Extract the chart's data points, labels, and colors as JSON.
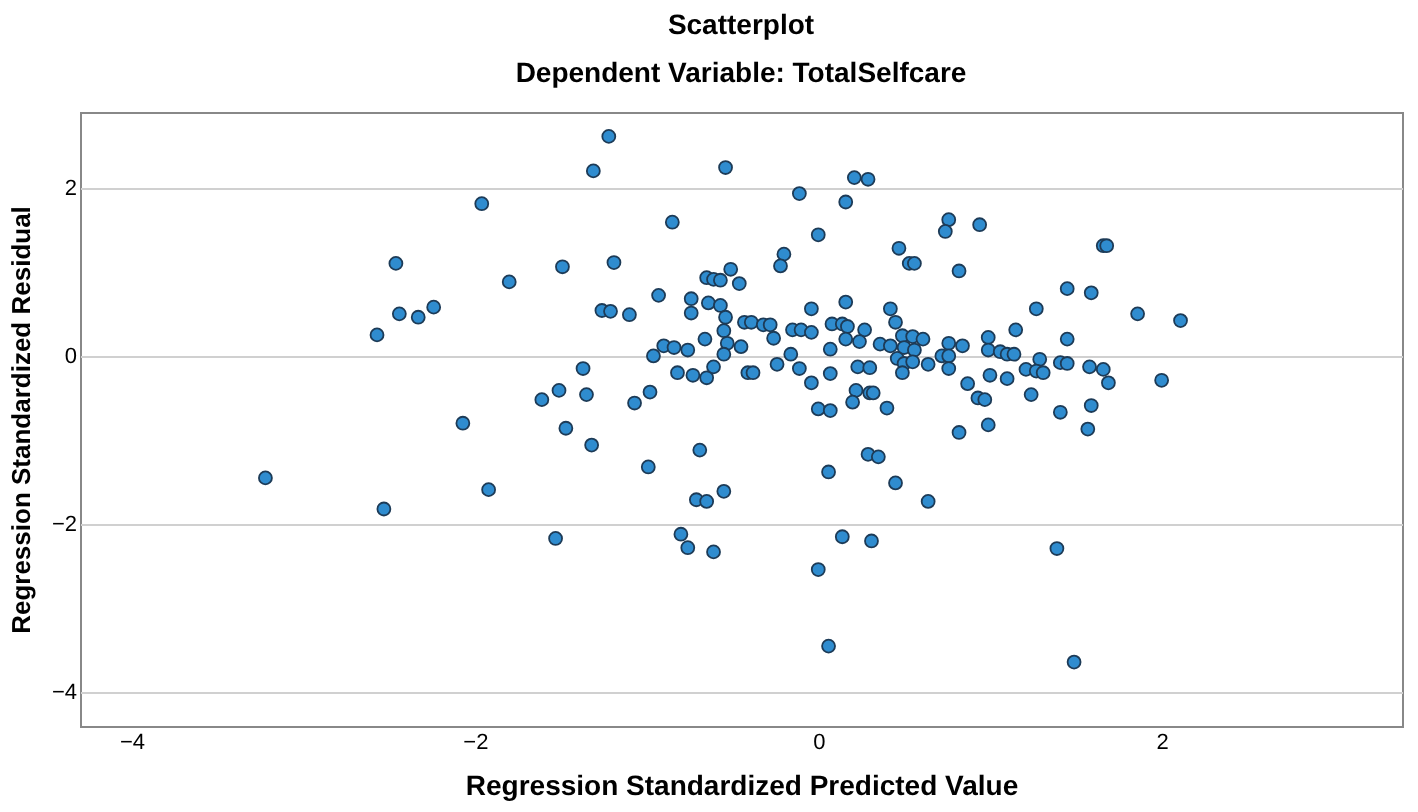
{
  "chart_data": {
    "type": "scatter",
    "title": "Scatterplot",
    "subtitle": "Dependent Variable: TotalSelfcare",
    "xlabel": "Regression Standardized Predicted Value",
    "ylabel": "Regression Standardized Residual",
    "xlim": [
      -4.3,
      3.4
    ],
    "ylim": [
      -4.4,
      2.9
    ],
    "xticks": [
      -4,
      -2,
      0,
      2
    ],
    "yticks": [
      -4,
      -2,
      0,
      2
    ],
    "grid": "y",
    "marker": "circle",
    "x": [
      -1.22,
      -1.31,
      -0.54,
      0.21,
      0.29,
      -1.96,
      -2.46,
      -1.8,
      -2.44,
      -2.33,
      -2.24,
      -2.57,
      -1.61,
      -2.07,
      -3.22,
      -1.92,
      -2.53,
      -1.53,
      -0.85,
      -0.11,
      0.16,
      0.0,
      -1.49,
      -1.19,
      -0.2,
      -0.22,
      -0.51,
      -0.46,
      -0.65,
      -0.61,
      -0.57,
      -0.93,
      -1.26,
      -1.21,
      -1.1,
      -0.74,
      -0.74,
      -0.64,
      -0.57,
      -0.54,
      -0.55,
      -0.66,
      -0.53,
      -0.55,
      -0.43,
      -0.39,
      -0.32,
      -0.28,
      -0.26,
      -0.45,
      -0.15,
      -0.1,
      -0.04,
      -0.04,
      0.07,
      0.08,
      0.14,
      0.17,
      0.16,
      0.16,
      -0.96,
      -0.9,
      -0.84,
      -0.76,
      -0.82,
      -0.73,
      -0.65,
      -0.61,
      -0.41,
      -0.38,
      -0.24,
      -0.16,
      -0.11,
      -0.04,
      0.07,
      0.0,
      0.07,
      -1.37,
      -1.51,
      -1.35,
      -1.47,
      -1.32,
      -1.07,
      -0.98,
      -0.99,
      -0.69,
      -0.71,
      -0.65,
      -0.55,
      -0.8,
      -0.76,
      -0.61,
      0.06,
      0.14,
      0.0,
      0.06,
      0.76,
      0.74,
      0.94,
      0.47,
      0.53,
      0.56,
      0.82,
      1.66,
      1.68,
      1.45,
      1.59,
      1.86,
      2.11,
      1.27,
      0.42,
      0.45,
      0.27,
      0.24,
      0.49,
      0.55,
      0.61,
      0.36,
      0.42,
      0.5,
      0.56,
      0.46,
      0.5,
      0.55,
      0.49,
      0.64,
      0.76,
      0.84,
      0.72,
      0.76,
      0.76,
      0.99,
      0.99,
      1.06,
      1.1,
      1.14,
      1.15,
      1.45,
      1.29,
      1.21,
      1.27,
      1.31,
      1.41,
      1.45,
      1.58,
      1.66,
      1.69,
      2.0,
      1.0,
      1.1,
      0.87,
      1.24,
      0.93,
      0.97,
      1.41,
      1.59,
      1.57,
      0.99,
      0.82,
      0.3,
      0.32,
      0.22,
      0.2,
      0.4,
      0.23,
      0.3,
      0.29,
      0.35,
      0.45,
      0.64,
      0.31,
      1.39,
      1.49
    ],
    "series": [
      {
        "color": "#2f8ccf",
        "values": [
          2.61,
          2.2,
          2.24,
          2.12,
          2.1,
          1.81,
          1.1,
          0.88,
          0.5,
          0.46,
          0.58,
          0.25,
          -0.52,
          -0.8,
          -1.45,
          -1.59,
          -1.82,
          -2.17,
          1.59,
          1.93,
          1.83,
          1.44,
          1.06,
          1.11,
          1.21,
          1.07,
          1.03,
          0.86,
          0.93,
          0.91,
          0.9,
          0.72,
          0.54,
          0.53,
          0.49,
          0.68,
          0.51,
          0.63,
          0.6,
          0.46,
          0.3,
          0.2,
          0.15,
          0.02,
          0.4,
          0.4,
          0.37,
          0.37,
          0.21,
          0.11,
          0.31,
          0.31,
          0.56,
          0.28,
          0.08,
          0.38,
          0.38,
          0.35,
          0.64,
          0.2,
          0.0,
          0.12,
          0.1,
          0.07,
          -0.2,
          -0.23,
          -0.26,
          -0.13,
          -0.2,
          -0.2,
          -0.1,
          0.02,
          -0.15,
          -0.32,
          -0.21,
          -0.63,
          -0.65,
          -0.15,
          -0.41,
          -0.46,
          -0.86,
          -1.06,
          -0.56,
          -0.43,
          -1.32,
          -1.12,
          -1.71,
          -1.73,
          -1.61,
          -2.12,
          -2.28,
          -2.33,
          -1.38,
          -2.15,
          -2.54,
          -3.45,
          1.62,
          1.48,
          1.56,
          1.28,
          1.1,
          1.1,
          1.01,
          1.31,
          1.31,
          0.8,
          0.75,
          0.5,
          0.42,
          0.56,
          0.56,
          0.4,
          0.31,
          0.17,
          0.24,
          0.23,
          0.2,
          0.14,
          0.12,
          0.1,
          0.07,
          -0.03,
          -0.09,
          -0.07,
          -0.2,
          -0.1,
          0.15,
          0.12,
          0.0,
          0.0,
          -0.15,
          0.22,
          0.07,
          0.05,
          0.02,
          0.02,
          0.31,
          0.2,
          -0.04,
          -0.16,
          -0.18,
          -0.2,
          -0.08,
          -0.09,
          -0.13,
          -0.16,
          -0.32,
          -0.29,
          -0.23,
          -0.27,
          -0.33,
          -0.46,
          -0.5,
          -0.52,
          -0.67,
          -0.59,
          -0.87,
          -0.82,
          -0.91,
          -0.44,
          -0.44,
          -0.41,
          -0.55,
          -0.62,
          -0.13,
          -0.14,
          -1.17,
          -1.2,
          -1.51,
          -1.73,
          -2.2,
          -2.29,
          -3.64
        ]
      }
    ]
  }
}
